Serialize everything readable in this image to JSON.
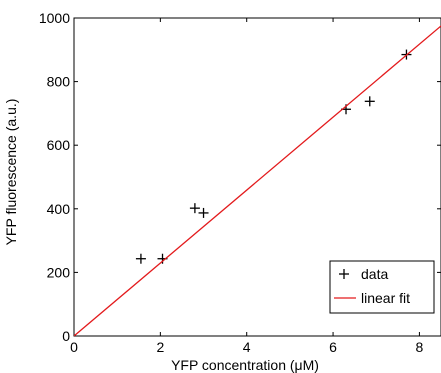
{
  "chart_data": {
    "type": "scatter",
    "xlabel": "YFP concentration (μM)",
    "ylabel": "YFP fluorescence (a.u.)",
    "xlim": [
      0,
      8.5
    ],
    "ylim": [
      0,
      1000
    ],
    "xticks": [
      0,
      2,
      4,
      6,
      8
    ],
    "yticks": [
      0,
      200,
      400,
      600,
      800,
      1000
    ],
    "grid": false,
    "legend_position": "bottom-right",
    "series": [
      {
        "name": "data",
        "kind": "markers",
        "marker": "+",
        "color": "#000000",
        "x": [
          1.55,
          2.05,
          2.8,
          3.0,
          6.3,
          6.85,
          7.7
        ],
        "y": [
          243,
          243,
          402,
          387,
          713,
          738,
          885
        ]
      },
      {
        "name": "linear fit",
        "kind": "line",
        "color": "#e31a1c",
        "x": [
          0,
          8.5
        ],
        "y": [
          0,
          975
        ]
      }
    ]
  }
}
